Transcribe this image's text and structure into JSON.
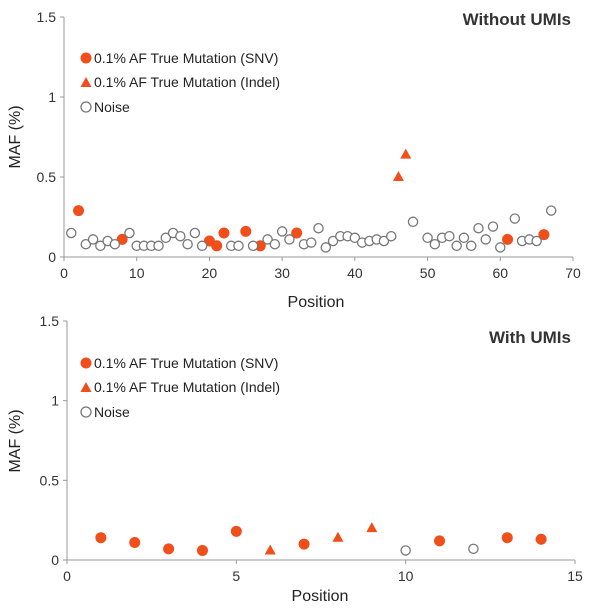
{
  "colors": {
    "mutation": "#f04e1a",
    "noise": "#777777",
    "axis": "#999999"
  },
  "chart_data": [
    {
      "type": "scatter",
      "title": "Without UMIs",
      "xlabel": "Position",
      "ylabel": "MAF (%)",
      "xlim": [
        0,
        70
      ],
      "ylim": [
        0,
        1.5
      ],
      "xticks": [
        "0",
        "10",
        "20",
        "30",
        "40",
        "50",
        "60",
        "70"
      ],
      "yticks": [
        "0",
        "0.5",
        "1",
        "1.5"
      ],
      "legend_position": "top-left",
      "series": [
        {
          "name": "0.1% AF True Mutation (SNV)",
          "marker": "circle-filled",
          "points": [
            [
              2,
              0.29
            ],
            [
              8,
              0.11
            ],
            [
              20,
              0.1
            ],
            [
              21,
              0.07
            ],
            [
              22,
              0.15
            ],
            [
              25,
              0.16
            ],
            [
              27,
              0.07
            ],
            [
              32,
              0.15
            ],
            [
              61,
              0.11
            ],
            [
              66,
              0.14
            ]
          ]
        },
        {
          "name": "0.1% AF True Mutation (Indel)",
          "marker": "triangle-filled",
          "points": [
            [
              46,
              0.5
            ],
            [
              47,
              0.64
            ]
          ]
        },
        {
          "name": "Noise",
          "marker": "circle-open",
          "points": [
            [
              1,
              0.15
            ],
            [
              3,
              0.08
            ],
            [
              4,
              0.11
            ],
            [
              5,
              0.07
            ],
            [
              6,
              0.1
            ],
            [
              7,
              0.08
            ],
            [
              9,
              0.15
            ],
            [
              10,
              0.07
            ],
            [
              11,
              0.07
            ],
            [
              12,
              0.07
            ],
            [
              13,
              0.07
            ],
            [
              14,
              0.12
            ],
            [
              15,
              0.15
            ],
            [
              16,
              0.13
            ],
            [
              17,
              0.08
            ],
            [
              18,
              0.15
            ],
            [
              19,
              0.07
            ],
            [
              23,
              0.07
            ],
            [
              24,
              0.07
            ],
            [
              26,
              0.07
            ],
            [
              28,
              0.11
            ],
            [
              29,
              0.08
            ],
            [
              30,
              0.16
            ],
            [
              31,
              0.11
            ],
            [
              33,
              0.08
            ],
            [
              34,
              0.09
            ],
            [
              35,
              0.18
            ],
            [
              36,
              0.06
            ],
            [
              37,
              0.1
            ],
            [
              38,
              0.13
            ],
            [
              39,
              0.13
            ],
            [
              40,
              0.12
            ],
            [
              41,
              0.09
            ],
            [
              42,
              0.1
            ],
            [
              43,
              0.11
            ],
            [
              44,
              0.1
            ],
            [
              45,
              0.13
            ],
            [
              48,
              0.22
            ],
            [
              50,
              0.12
            ],
            [
              51,
              0.08
            ],
            [
              52,
              0.12
            ],
            [
              53,
              0.13
            ],
            [
              54,
              0.07
            ],
            [
              55,
              0.12
            ],
            [
              56,
              0.07
            ],
            [
              57,
              0.18
            ],
            [
              58,
              0.11
            ],
            [
              59,
              0.19
            ],
            [
              60,
              0.06
            ],
            [
              62,
              0.24
            ],
            [
              63,
              0.1
            ],
            [
              64,
              0.11
            ],
            [
              65,
              0.1
            ],
            [
              67,
              0.29
            ]
          ]
        }
      ]
    },
    {
      "type": "scatter",
      "title": "With UMIs",
      "xlabel": "Position",
      "ylabel": "MAF (%)",
      "xlim": [
        0,
        15
      ],
      "ylim": [
        0,
        1.5
      ],
      "xticks": [
        "0",
        "5",
        "10",
        "15"
      ],
      "yticks": [
        "0",
        "0.5",
        "1",
        "1.5"
      ],
      "legend_position": "top-left",
      "series": [
        {
          "name": "0.1% AF True Mutation (SNV)",
          "marker": "circle-filled",
          "points": [
            [
              1,
              0.14
            ],
            [
              2,
              0.11
            ],
            [
              3,
              0.07
            ],
            [
              4,
              0.06
            ],
            [
              5,
              0.18
            ],
            [
              7,
              0.1
            ],
            [
              11,
              0.12
            ],
            [
              13,
              0.14
            ],
            [
              14,
              0.13
            ]
          ]
        },
        {
          "name": "0.1% AF True Mutation (Indel)",
          "marker": "triangle-filled",
          "points": [
            [
              6,
              0.06
            ],
            [
              8,
              0.14
            ],
            [
              9,
              0.2
            ]
          ]
        },
        {
          "name": "Noise",
          "marker": "circle-open",
          "points": [
            [
              10,
              0.06
            ],
            [
              12,
              0.07
            ]
          ]
        }
      ]
    }
  ]
}
